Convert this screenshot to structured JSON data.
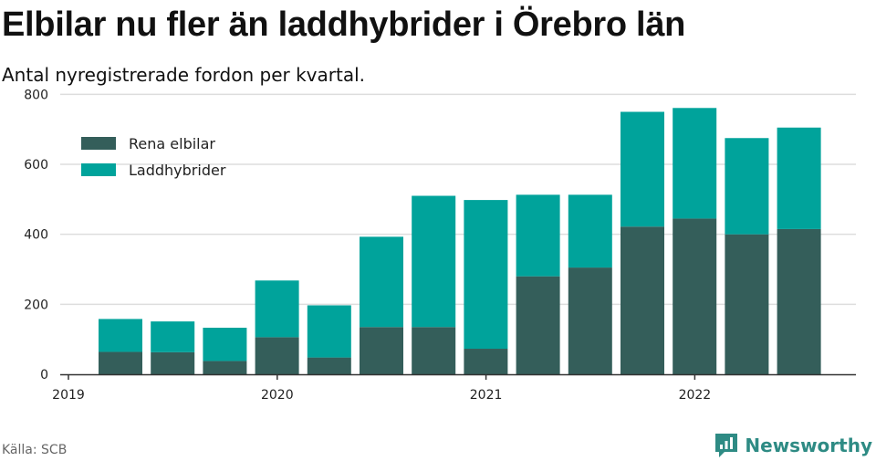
{
  "title": "Elbilar nu fler än laddhybrider i Örebro län",
  "subtitle": "Antal nyregistrerade fordon per kvartal.",
  "source": "Källa: SCB",
  "brand": {
    "name": "Newsworthy",
    "icon": "newsworthy-logo-icon"
  },
  "colors": {
    "rena_elbilar": "#345e5a",
    "laddhybrider": "#00a39b",
    "grid": "#dddddd",
    "axis": "#333333"
  },
  "chart_data": {
    "type": "bar",
    "stacked": true,
    "categories": [
      "2019 Q1",
      "2019 Q2",
      "2019 Q3",
      "2019 Q4",
      "2020 Q1",
      "2020 Q2",
      "2020 Q3",
      "2020 Q4",
      "2021 Q1",
      "2021 Q2",
      "2021 Q3",
      "2021 Q4",
      "2022 Q1",
      "2022 Q2",
      "2022 Q3"
    ],
    "series": [
      {
        "name": "Rena elbilar",
        "values": [
          64,
          63,
          38,
          106,
          48,
          135,
          135,
          73,
          280,
          305,
          422,
          445,
          400,
          415,
          0
        ]
      },
      {
        "name": "Laddhybrider",
        "values": [
          94,
          88,
          95,
          162,
          149,
          258,
          375,
          425,
          233,
          208,
          328,
          316,
          275,
          290,
          0
        ]
      }
    ],
    "x_tick_labels": [
      "2019",
      "2020",
      "2021",
      "2022"
    ],
    "y_ticks": [
      0,
      200,
      400,
      600,
      800
    ],
    "ylim": [
      0,
      840
    ],
    "grid": true,
    "legend_position": "top-left"
  }
}
